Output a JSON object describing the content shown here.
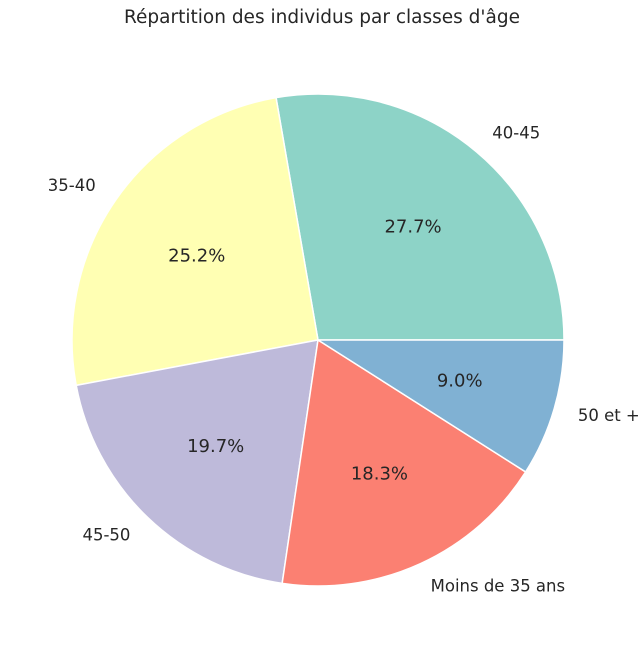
{
  "chart_data": {
    "type": "pie",
    "title": "Répartition des individus par classes d'âge",
    "categories": [
      "40-45",
      "35-40",
      "45-50",
      "Moins de 35 ans",
      "50 et +"
    ],
    "values": [
      27.7,
      25.2,
      19.7,
      18.3,
      9.0
    ],
    "percent_labels": [
      "27.7%",
      "25.2%",
      "19.7%",
      "18.3%",
      "9.0%"
    ],
    "colors": [
      "#8dd3c7",
      "#ffffb3",
      "#bebada",
      "#fb8072",
      "#80b1d3"
    ],
    "start_angle": 0,
    "direction": "counterclockwise",
    "edge_color": "#ffffff"
  }
}
